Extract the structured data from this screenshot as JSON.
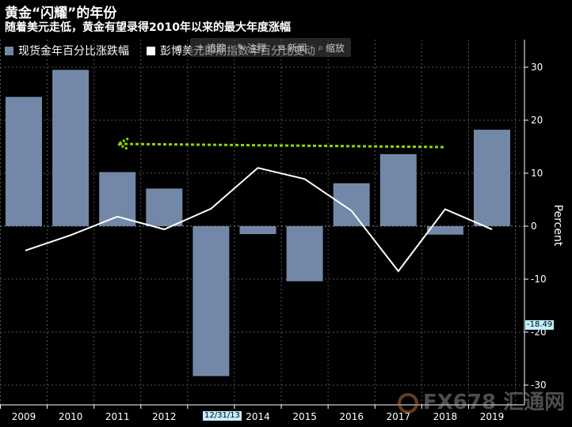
{
  "title": "黄金“闪耀”的年份",
  "subtitle": "随着美元走低，黄金有望录得2010年以来的最大年度涨幅",
  "toolbar": {
    "items": [
      {
        "icon": "plus-icon",
        "label": "追踪"
      },
      {
        "icon": "annotate-icon",
        "label": "注释"
      },
      {
        "icon": "news-icon",
        "label": "新闻"
      },
      {
        "icon": "zoom-icon",
        "label": "缩放"
      }
    ]
  },
  "legend": {
    "bar_label": "现货金年百分比涨跌幅",
    "line_label": "彭博美元即期指数年百分比变动"
  },
  "ylabel": "Percent",
  "last_value_tag": "-18.49",
  "date_tag": "12/31/13",
  "watermark": "FX678 汇通网",
  "colors": {
    "bar": "#7388a8",
    "line": "#ffffff",
    "arrow": "#8fd400",
    "background": "#000000"
  },
  "chart_data": {
    "type": "bar",
    "categories": [
      "2009",
      "2010",
      "2011",
      "2012",
      "2013",
      "2014",
      "2015",
      "2016",
      "2017",
      "2018",
      "2019"
    ],
    "ylim": [
      -32,
      35
    ],
    "yticks": [
      30,
      20,
      10,
      0,
      -10,
      -20,
      -30
    ],
    "grid": true,
    "series": [
      {
        "name": "现货金年百分比涨跌幅",
        "type": "bar",
        "values": [
          24.4,
          29.5,
          10.2,
          7.1,
          -28.3,
          -1.5,
          -10.4,
          8.1,
          13.6,
          -1.6,
          18.2
        ]
      },
      {
        "name": "彭博美元即期指数年百分比变动",
        "type": "line",
        "values": [
          -4.6,
          -1.7,
          1.8,
          -0.6,
          3.3,
          11.0,
          8.9,
          2.9,
          -8.5,
          3.2,
          -0.6
        ]
      }
    ]
  }
}
